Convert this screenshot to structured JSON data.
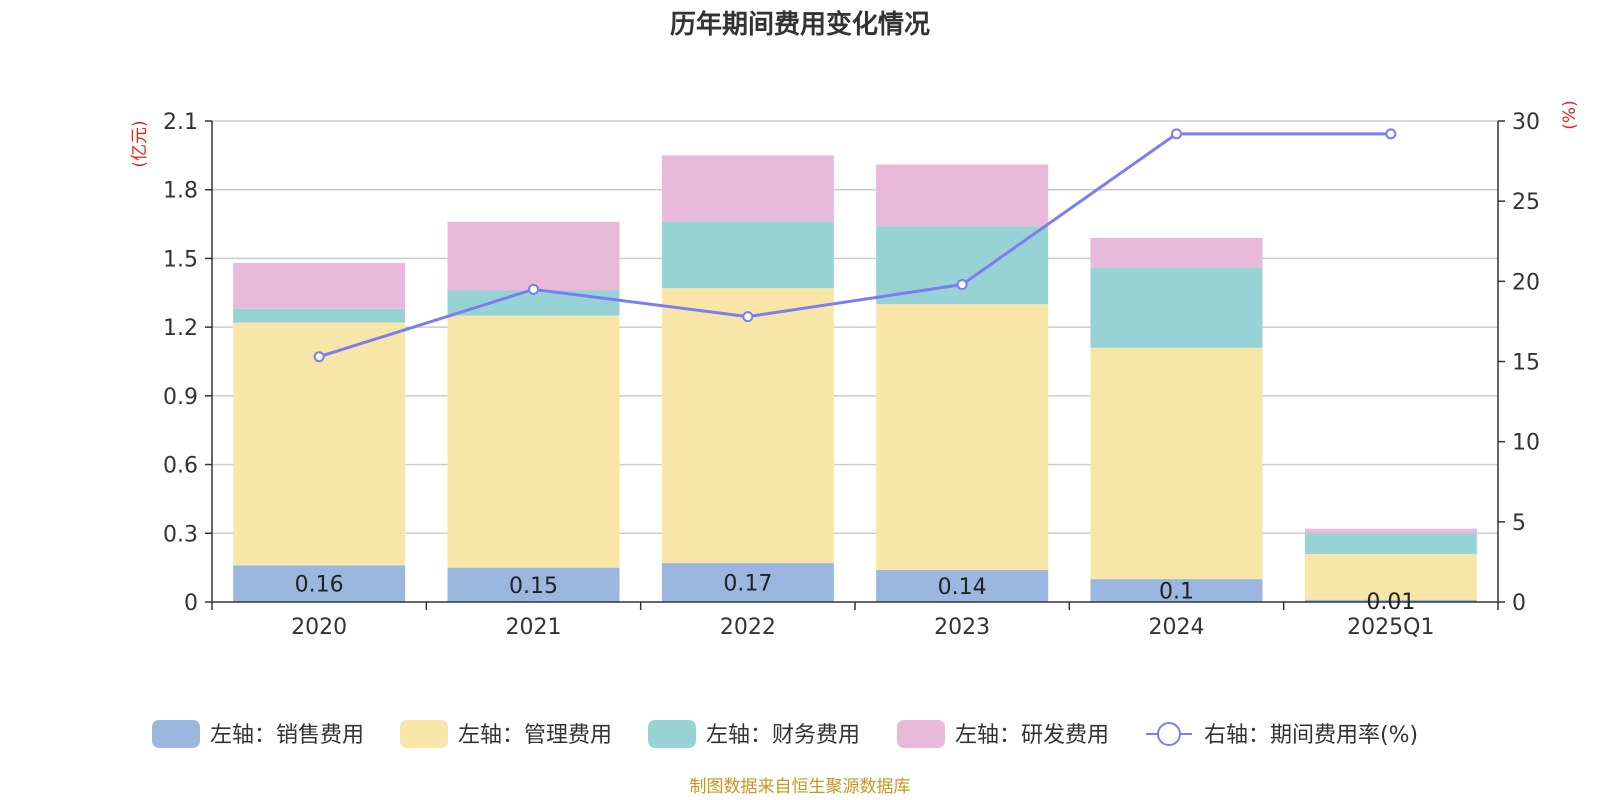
{
  "chart_data": {
    "type": "bar",
    "title": "历年期间费用变化情况",
    "categories": [
      "2020",
      "2021",
      "2022",
      "2023",
      "2024",
      "2025Q1"
    ],
    "left_axis": {
      "unit": "(亿元)",
      "ylim": [
        0,
        2.1
      ],
      "ticks": [
        "0",
        "0.3",
        "0.6",
        "0.9",
        "1.2",
        "1.5",
        "1.8",
        "2.1"
      ]
    },
    "right_axis": {
      "unit": "(%)",
      "ylim": [
        0,
        30
      ],
      "ticks": [
        "0",
        "5",
        "10",
        "15",
        "20",
        "25",
        "30"
      ]
    },
    "series": [
      {
        "name": "左轴：销售费用",
        "type": "bar",
        "stack": true,
        "color": "#9bb7e0",
        "values": [
          0.16,
          0.15,
          0.17,
          0.14,
          0.1,
          0.01
        ],
        "labels": [
          "0.16",
          "0.15",
          "0.17",
          "0.14",
          "0.1",
          "0.01"
        ]
      },
      {
        "name": "左轴：管理费用",
        "type": "bar",
        "stack": true,
        "color": "#f7e6a7",
        "values": [
          1.06,
          1.1,
          1.2,
          1.16,
          1.01,
          0.2
        ]
      },
      {
        "name": "左轴：财务费用",
        "type": "bar",
        "stack": true,
        "color": "#97d3d5",
        "values": [
          0.06,
          0.11,
          0.29,
          0.34,
          0.35,
          0.09
        ]
      },
      {
        "name": "左轴：研发费用",
        "type": "bar",
        "stack": true,
        "color": "#e8b9d9",
        "values": [
          0.2,
          0.3,
          0.29,
          0.27,
          0.13,
          0.02
        ]
      },
      {
        "name": "右轴：期间费用率(%)",
        "type": "line",
        "axis": "right",
        "color": "#7b7ef0",
        "values": [
          15.3,
          19.5,
          17.8,
          19.8,
          29.2,
          29.2
        ]
      }
    ],
    "grid": true,
    "legend_position": "bottom"
  },
  "source": "制图数据来自恒生聚源数据库"
}
